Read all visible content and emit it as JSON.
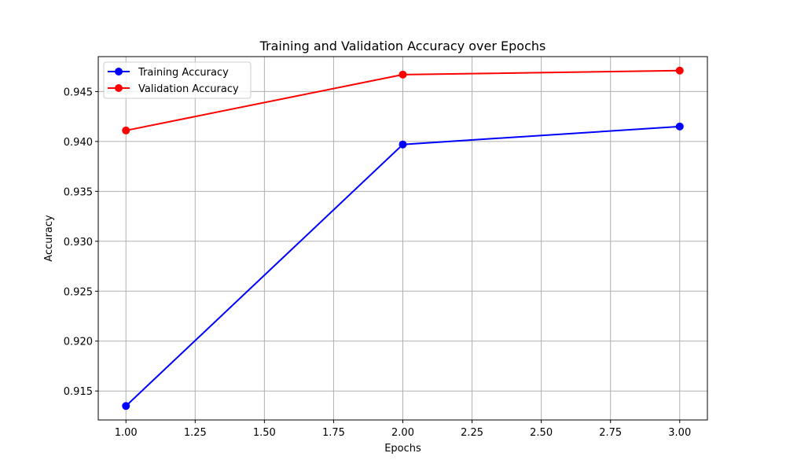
{
  "chart_data": {
    "type": "line",
    "title": "Training and Validation Accuracy over Epochs",
    "xlabel": "Epochs",
    "ylabel": "Accuracy",
    "x": [
      1.0,
      2.0,
      3.0
    ],
    "xlim": [
      0.9,
      3.1
    ],
    "ylim": [
      0.9121,
      0.9485
    ],
    "xticks": [
      1.0,
      1.25,
      1.5,
      1.75,
      2.0,
      2.25,
      2.5,
      2.75,
      3.0
    ],
    "xtick_labels": [
      "1.00",
      "1.25",
      "1.50",
      "1.75",
      "2.00",
      "2.25",
      "2.50",
      "2.75",
      "3.00"
    ],
    "yticks": [
      0.915,
      0.92,
      0.925,
      0.93,
      0.935,
      0.94,
      0.945
    ],
    "ytick_labels": [
      "0.915",
      "0.920",
      "0.925",
      "0.930",
      "0.935",
      "0.940",
      "0.945"
    ],
    "grid": true,
    "legend_position": "upper-left",
    "series": [
      {
        "name": "Training Accuracy",
        "color": "#0000ff",
        "marker": "circle",
        "values": [
          0.9135,
          0.9397,
          0.9415
        ]
      },
      {
        "name": "Validation Accuracy",
        "color": "#ff0000",
        "marker": "circle",
        "values": [
          0.9411,
          0.9467,
          0.9471
        ]
      }
    ]
  }
}
